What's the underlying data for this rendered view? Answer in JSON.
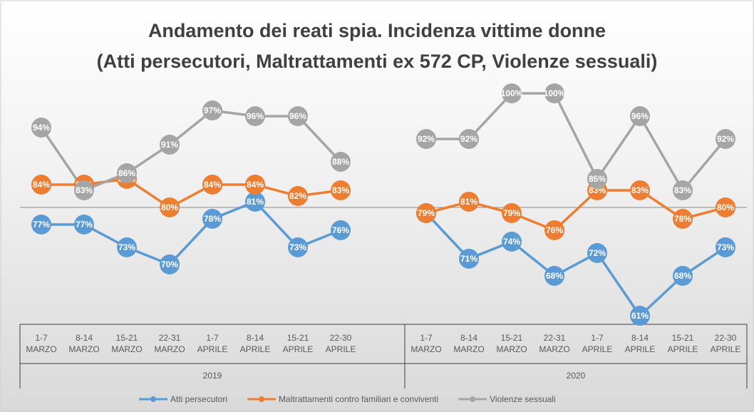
{
  "chart_data": {
    "type": "line",
    "title": [
      "Andamento dei reati spia. Incidenza vittime donne",
      "(Atti persecutori, Maltrattamenti ex 572 CP, Violenze sessuali)"
    ],
    "groups": [
      "2019",
      "2020"
    ],
    "categories": [
      "1-7 MARZO",
      "8-14 MARZO",
      "15-21 MARZO",
      "22-31 MARZO",
      "1-7 APRILE",
      "8-14 APRILE",
      "15-21 APRILE",
      "22-30 APRILE",
      null,
      "1-7 MARZO",
      "8-14 MARZO",
      "15-21 MARZO",
      "22-31 MARZO",
      "1-7 APRILE",
      "8-14 APRILE",
      "15-21 APRILE",
      "22-30 APRILE"
    ],
    "ylim": [
      58,
      102
    ],
    "series": [
      {
        "name": "Atti persecutori",
        "color": "#5b9bd5",
        "values": [
          77,
          77,
          73,
          70,
          78,
          81,
          73,
          76,
          null,
          79,
          71,
          74,
          68,
          72,
          61,
          68,
          73
        ],
        "value_labels": [
          "77%",
          "77%",
          "73%",
          "70%",
          "78%",
          "81%",
          "73%",
          "76%",
          null,
          "79%",
          "71%",
          "74%",
          "68%",
          "72%",
          "61%",
          "68%",
          "73%"
        ]
      },
      {
        "name": "Maltrattamenti contro familiari e conviventi",
        "color": "#ed7d31",
        "values": [
          84,
          84,
          85,
          80,
          84,
          84,
          82,
          83,
          null,
          79,
          81,
          79,
          76,
          83,
          83,
          78,
          80
        ],
        "value_labels": [
          "84%",
          "84%",
          "85%",
          "80%",
          "84%",
          "84%",
          "82%",
          "83%",
          null,
          "79%",
          "81%",
          "79%",
          "76%",
          "83%",
          "83%",
          "78%",
          "80%"
        ]
      },
      {
        "name": "Violenze sessuali",
        "color": "#a5a5a5",
        "values": [
          94,
          83,
          86,
          91,
          97,
          96,
          96,
          88,
          null,
          92,
          92,
          100,
          100,
          85,
          96,
          83,
          92
        ],
        "value_labels": [
          "94%",
          "83%",
          "86%",
          "91%",
          "97%",
          "96%",
          "96%",
          "88%",
          null,
          "92%",
          "92%",
          "100%",
          "100%",
          "85%",
          "96%",
          "83%",
          "92%"
        ]
      }
    ],
    "legend": "bottom"
  }
}
